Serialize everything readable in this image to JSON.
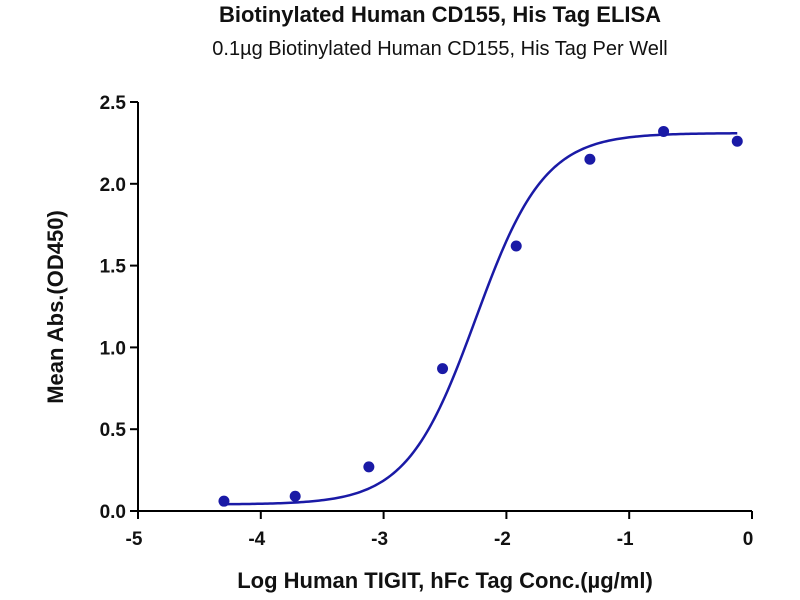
{
  "chart_data": {
    "type": "scatter",
    "title": "Biotinylated Human CD155, His Tag ELISA",
    "subtitle": "0.1µg Biotinylated Human CD155, His Tag Per Well",
    "xlabel": "Log Human TIGIT, hFc Tag Conc.(µg/ml)",
    "ylabel": "Mean Abs.(OD450)",
    "xlim": [
      -5,
      0
    ],
    "ylim": [
      0,
      2.5
    ],
    "xticks": [
      "-5",
      "-4",
      "-3",
      "-2",
      "-1",
      "0"
    ],
    "yticks": [
      "0.0",
      "0.5",
      "1.0",
      "1.5",
      "2.0",
      "2.5"
    ],
    "points": {
      "x": [
        -4.3,
        -3.72,
        -3.12,
        -2.52,
        -1.92,
        -1.32,
        -0.72,
        -0.12
      ],
      "y": [
        0.06,
        0.09,
        0.27,
        0.87,
        1.62,
        2.15,
        2.32,
        2.26
      ]
    },
    "fit_curve": {
      "bottom": 0.04,
      "top": 2.31,
      "logEC50": -2.25,
      "hill": 1.55
    },
    "color": "#1a1aa6",
    "grid": false,
    "legend": "none"
  }
}
